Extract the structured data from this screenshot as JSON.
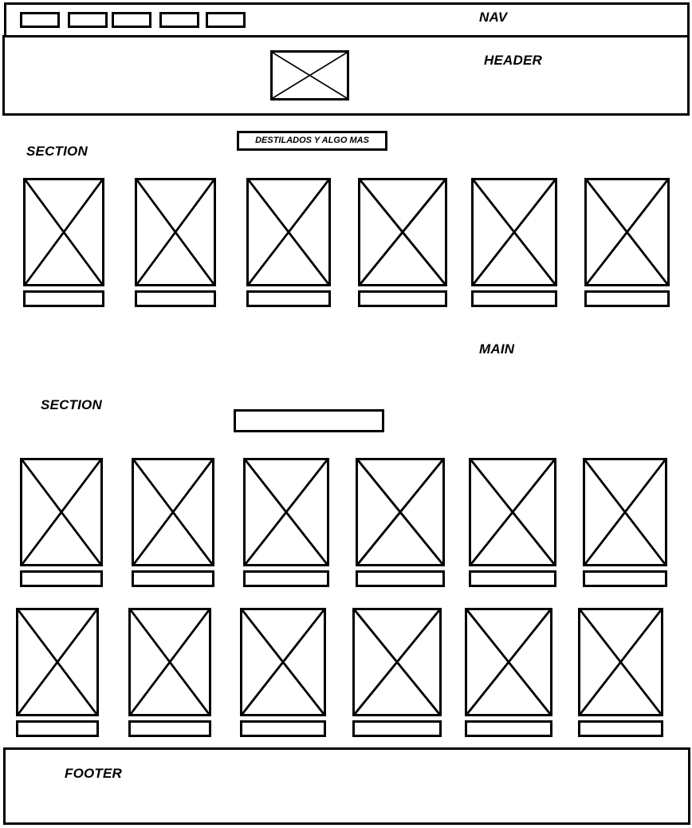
{
  "nav": {
    "label": "NAV",
    "button_count": 5
  },
  "header": {
    "label": "HEADER"
  },
  "main": {
    "label": "MAIN"
  },
  "section1": {
    "label": "SECTION",
    "title": "DESTILADOS Y ALGO MAS",
    "product_count": 6
  },
  "section2": {
    "label": "SECTION",
    "title": "",
    "product_count": 12
  },
  "footer": {
    "label": "FOOTER"
  }
}
